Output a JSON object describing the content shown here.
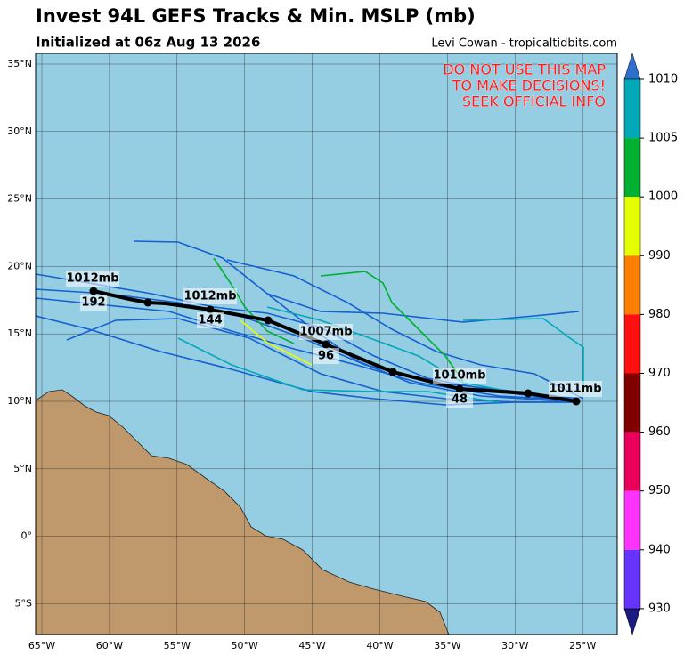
{
  "header": {
    "title": "Invest 94L GEFS Tracks & Min. MSLP (mb)",
    "subtitle": "Initialized at 06z Aug 13 2026",
    "credit": "Levi Cowan - tropicaltidbits.com"
  },
  "warning": [
    "DO NOT USE THIS MAP",
    "TO MAKE DECISIONS!",
    "SEEK OFFICIAL INFO"
  ],
  "lat_labels": [
    "35°N",
    "30°N",
    "25°N",
    "20°N",
    "15°N",
    "10°N",
    "5°N",
    "0°",
    "5°S"
  ],
  "lon_labels": [
    "65°W",
    "60°W",
    "55°W",
    "50°W",
    "45°W",
    "40°W",
    "35°W",
    "30°W",
    "25°W"
  ],
  "colorbar_labels": [
    "1010",
    "1005",
    "1000",
    "990",
    "980",
    "970",
    "960",
    "950",
    "940",
    "930"
  ],
  "track_labels": [
    {
      "pressure": "1012mb",
      "hour": "192"
    },
    {
      "pressure": "1012mb",
      "hour": "144"
    },
    {
      "pressure": "1007mb",
      "hour": "96"
    },
    {
      "pressure": "1010mb",
      "hour": "48"
    },
    {
      "pressure": "1011mb"
    }
  ]
}
